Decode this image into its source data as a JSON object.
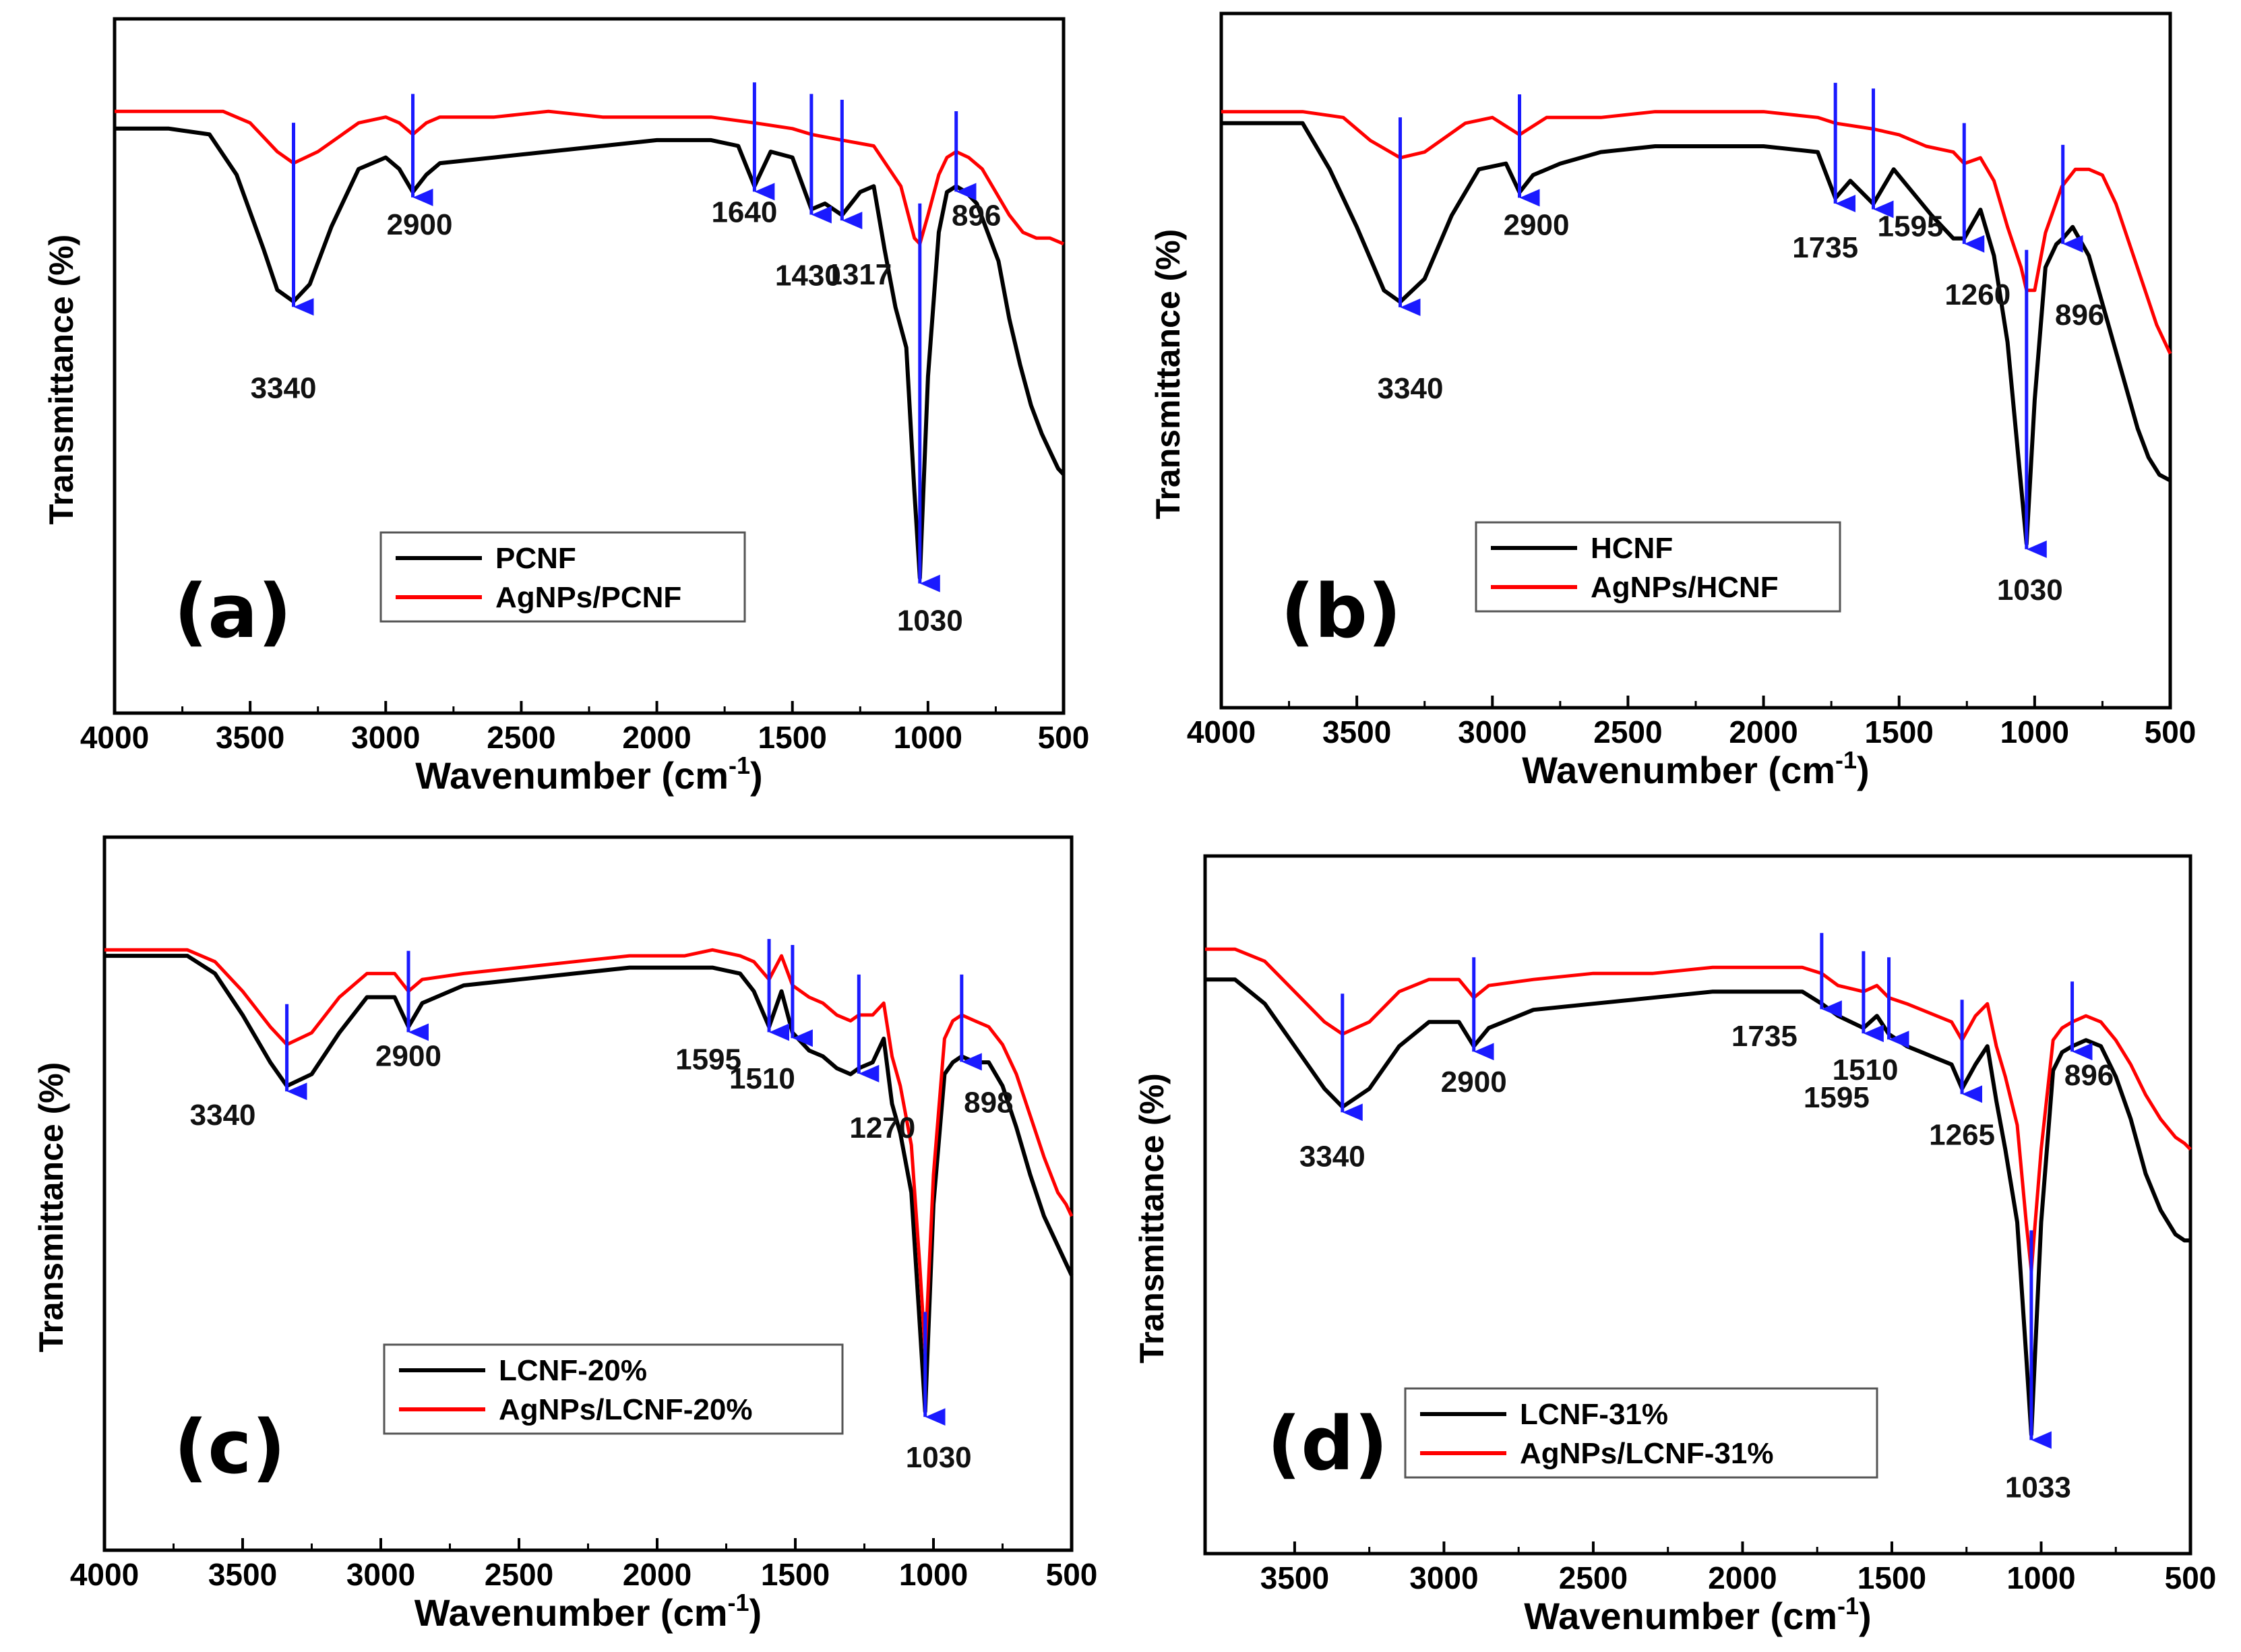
{
  "chart_data": [
    {
      "type": "line",
      "panel_label": "(a)",
      "xlabel": "Wavenumber (cm-1)",
      "xlabel_base": "Wavenumber (cm",
      "xlabel_sup": "-1",
      "xlabel_end": ")",
      "ylabel": "Transmittance (%)",
      "xlim": [
        4000,
        500
      ],
      "xticks": [
        "4000",
        "3500",
        "3000",
        "2500",
        "2000",
        "1500",
        "1000",
        "500"
      ],
      "ylim": [
        0,
        100
      ],
      "legend_position": "bottom-center",
      "series": [
        {
          "name": "PCNF",
          "color": "#000000",
          "x": [
            4000,
            3800,
            3650,
            3550,
            3450,
            3400,
            3340,
            3280,
            3200,
            3100,
            3000,
            2950,
            2900,
            2850,
            2800,
            2600,
            2400,
            2200,
            2000,
            1800,
            1700,
            1640,
            1580,
            1500,
            1430,
            1380,
            1317,
            1250,
            1200,
            1160,
            1120,
            1080,
            1050,
            1030,
            1000,
            960,
            930,
            896,
            860,
            820,
            780,
            740,
            700,
            660,
            620,
            580,
            540,
            520,
            500
          ],
          "y": [
            93,
            93,
            92,
            85,
            72,
            65,
            63,
            66,
            76,
            86,
            88,
            86,
            82,
            85,
            87,
            88,
            89,
            90,
            91,
            91,
            90,
            83,
            89,
            88,
            79,
            80,
            78,
            82,
            83,
            72,
            62,
            55,
            30,
            15,
            50,
            75,
            82,
            83,
            82,
            80,
            75,
            70,
            60,
            52,
            45,
            40,
            36,
            34,
            33
          ]
        },
        {
          "name": "AgNPs/PCNF",
          "color": "#ff0000",
          "x": [
            4000,
            3800,
            3600,
            3500,
            3400,
            3340,
            3250,
            3100,
            3000,
            2950,
            2900,
            2850,
            2800,
            2600,
            2400,
            2200,
            2000,
            1800,
            1640,
            1500,
            1430,
            1317,
            1200,
            1100,
            1050,
            1030,
            1000,
            960,
            930,
            896,
            850,
            800,
            750,
            700,
            650,
            600,
            550,
            500
          ],
          "y": [
            96,
            96,
            96,
            94,
            89,
            87,
            89,
            94,
            95,
            94,
            92,
            94,
            95,
            95,
            96,
            95,
            95,
            95,
            94,
            93,
            92,
            91,
            90,
            83,
            74,
            73,
            78,
            85,
            88,
            89,
            88,
            86,
            82,
            78,
            75,
            74,
            74,
            73
          ]
        }
      ],
      "annotations": [
        {
          "label": "3340",
          "x": 3340
        },
        {
          "label": "2900",
          "x": 2900
        },
        {
          "label": "1640",
          "x": 1640
        },
        {
          "label": "1430",
          "x": 1430
        },
        {
          "label": "1317",
          "x": 1317
        },
        {
          "label": "1030",
          "x": 1030
        },
        {
          "label": "896",
          "x": 896
        }
      ]
    },
    {
      "type": "line",
      "panel_label": "(b)",
      "xlabel": "Wavenumber (cm-1)",
      "xlabel_base": "Wavenumber (cm",
      "xlabel_sup": "-1",
      "xlabel_end": ")",
      "ylabel": "Transmittance (%)",
      "xlim": [
        4000,
        500
      ],
      "xticks": [
        "4000",
        "3500",
        "3000",
        "2500",
        "2000",
        "1500",
        "1000",
        "500"
      ],
      "ylim": [
        0,
        100
      ],
      "legend_position": "bottom-center",
      "series": [
        {
          "name": "HCNF",
          "color": "#000000",
          "x": [
            4000,
            3800,
            3700,
            3600,
            3500,
            3400,
            3340,
            3250,
            3150,
            3050,
            2950,
            2900,
            2850,
            2750,
            2600,
            2400,
            2200,
            2000,
            1800,
            1735,
            1680,
            1595,
            1520,
            1450,
            1380,
            1300,
            1260,
            1200,
            1150,
            1100,
            1060,
            1030,
            1000,
            960,
            920,
            896,
            860,
            800,
            740,
            680,
            620,
            580,
            540,
            500
          ],
          "y": [
            93,
            93,
            93,
            85,
            75,
            64,
            62,
            66,
            77,
            85,
            86,
            81,
            84,
            86,
            88,
            89,
            89,
            89,
            88,
            80,
            83,
            79,
            85,
            81,
            77,
            73,
            73,
            78,
            70,
            55,
            35,
            20,
            45,
            68,
            72,
            73,
            75,
            70,
            60,
            50,
            40,
            35,
            32,
            31
          ]
        },
        {
          "name": "AgNPs/HCNF",
          "color": "#ff0000",
          "x": [
            4000,
            3700,
            3550,
            3450,
            3340,
            3250,
            3100,
            3000,
            2900,
            2800,
            2600,
            2400,
            2200,
            2000,
            1800,
            1735,
            1595,
            1500,
            1400,
            1300,
            1260,
            1200,
            1150,
            1100,
            1050,
            1030,
            1000,
            960,
            900,
            850,
            800,
            750,
            700,
            650,
            600,
            550,
            500
          ],
          "y": [
            95,
            95,
            94,
            90,
            87,
            88,
            93,
            94,
            91,
            94,
            94,
            95,
            95,
            95,
            94,
            93,
            92,
            91,
            89,
            88,
            86,
            87,
            83,
            75,
            68,
            64,
            64,
            74,
            82,
            85,
            85,
            84,
            79,
            72,
            65,
            58,
            53
          ]
        }
      ],
      "annotations": [
        {
          "label": "3340",
          "x": 3340
        },
        {
          "label": "2900",
          "x": 2900
        },
        {
          "label": "1735",
          "x": 1735
        },
        {
          "label": "1595",
          "x": 1595
        },
        {
          "label": "1260",
          "x": 1260
        },
        {
          "label": "1030",
          "x": 1030
        },
        {
          "label": "896",
          "x": 896
        }
      ]
    },
    {
      "type": "line",
      "panel_label": "(c)",
      "xlabel": "Wavenumber (cm-1)",
      "xlabel_base": "Wavenumber (cm",
      "xlabel_sup": "-1",
      "xlabel_end": ")",
      "ylabel": "Transmittance (%)",
      "xlim": [
        4000,
        500
      ],
      "xticks": [
        "4000",
        "3500",
        "3000",
        "2500",
        "2000",
        "1500",
        "1000",
        "500"
      ],
      "ylim": [
        0,
        100
      ],
      "legend_position": "bottom-center",
      "series": [
        {
          "name": "LCNF-20%",
          "color": "#000000",
          "x": [
            4000,
            3800,
            3700,
            3600,
            3500,
            3400,
            3340,
            3250,
            3150,
            3050,
            2950,
            2900,
            2850,
            2700,
            2500,
            2300,
            2100,
            1900,
            1800,
            1700,
            1650,
            1595,
            1550,
            1510,
            1450,
            1400,
            1350,
            1300,
            1270,
            1220,
            1180,
            1150,
            1120,
            1080,
            1050,
            1030,
            1000,
            960,
            930,
            898,
            850,
            800,
            750,
            700,
            650,
            600,
            550,
            520,
            500
          ],
          "y": [
            92,
            92,
            92,
            89,
            82,
            74,
            70,
            72,
            79,
            85,
            85,
            80,
            84,
            87,
            88,
            89,
            90,
            90,
            90,
            89,
            86,
            80,
            86,
            79,
            76,
            75,
            73,
            72,
            73,
            74,
            78,
            67,
            62,
            52,
            30,
            15,
            50,
            72,
            74,
            75,
            74,
            74,
            70,
            63,
            55,
            48,
            43,
            40,
            38
          ]
        },
        {
          "name": "AgNPs/LCNF-20%",
          "color": "#ff0000",
          "x": [
            4000,
            3800,
            3700,
            3600,
            3500,
            3400,
            3340,
            3250,
            3150,
            3050,
            2950,
            2900,
            2850,
            2700,
            2500,
            2300,
            2100,
            1900,
            1800,
            1700,
            1650,
            1595,
            1550,
            1510,
            1450,
            1400,
            1350,
            1300,
            1270,
            1220,
            1180,
            1150,
            1120,
            1080,
            1050,
            1030,
            1000,
            960,
            930,
            898,
            850,
            800,
            750,
            700,
            650,
            600,
            550,
            520,
            500
          ],
          "y": [
            93,
            93,
            93,
            91,
            86,
            80,
            77,
            79,
            85,
            89,
            89,
            86,
            88,
            89,
            90,
            91,
            92,
            92,
            93,
            92,
            91,
            88,
            92,
            87,
            85,
            84,
            82,
            81,
            82,
            82,
            84,
            75,
            70,
            60,
            40,
            25,
            55,
            78,
            81,
            82,
            81,
            80,
            77,
            72,
            65,
            58,
            52,
            50,
            48
          ]
        }
      ],
      "annotations": [
        {
          "label": "3340",
          "x": 3340
        },
        {
          "label": "2900",
          "x": 2900
        },
        {
          "label": "1595",
          "x": 1595
        },
        {
          "label": "1510",
          "x": 1510
        },
        {
          "label": "1270",
          "x": 1270
        },
        {
          "label": "1030",
          "x": 1030
        },
        {
          "label": "898",
          "x": 898
        }
      ]
    },
    {
      "type": "line",
      "panel_label": "(d)",
      "xlabel": "Wavenumber (cm-1)",
      "xlabel_base": "Wavenumber (cm",
      "xlabel_sup": "-1",
      "xlabel_end": ")",
      "ylabel": "Transmittance (%)",
      "xlim": [
        3800,
        500
      ],
      "xticks": [
        "3500",
        "3000",
        "2500",
        "2000",
        "1500",
        "1000",
        "500"
      ],
      "ylim": [
        0,
        100
      ],
      "legend_position": "bottom-center",
      "series": [
        {
          "name": "LCNF-31%",
          "color": "#000000",
          "x": [
            3800,
            3700,
            3600,
            3500,
            3400,
            3340,
            3250,
            3150,
            3050,
            2950,
            2900,
            2850,
            2700,
            2500,
            2300,
            2100,
            1900,
            1800,
            1735,
            1680,
            1595,
            1550,
            1510,
            1450,
            1400,
            1350,
            1300,
            1265,
            1220,
            1180,
            1150,
            1120,
            1080,
            1050,
            1033,
            1000,
            960,
            930,
            896,
            850,
            800,
            750,
            700,
            650,
            600,
            550,
            520,
            500
          ],
          "y": [
            90,
            90,
            86,
            79,
            72,
            69,
            72,
            79,
            83,
            83,
            79,
            82,
            85,
            86,
            87,
            88,
            88,
            88,
            86,
            84,
            82,
            84,
            81,
            79,
            78,
            77,
            76,
            72,
            76,
            79,
            70,
            62,
            50,
            28,
            15,
            50,
            75,
            78,
            79,
            80,
            79,
            74,
            67,
            58,
            52,
            48,
            47,
            47
          ]
        },
        {
          "name": "AgNPs/LCNF-31%",
          "color": "#ff0000",
          "x": [
            3800,
            3700,
            3600,
            3500,
            3400,
            3340,
            3250,
            3150,
            3050,
            2950,
            2900,
            2850,
            2700,
            2500,
            2300,
            2100,
            1900,
            1800,
            1735,
            1680,
            1595,
            1550,
            1510,
            1450,
            1400,
            1350,
            1300,
            1265,
            1220,
            1180,
            1150,
            1120,
            1080,
            1050,
            1033,
            1000,
            960,
            930,
            896,
            850,
            800,
            750,
            700,
            650,
            600,
            550,
            520,
            500
          ],
          "y": [
            95,
            95,
            93,
            88,
            83,
            81,
            83,
            88,
            90,
            90,
            87,
            89,
            90,
            91,
            91,
            92,
            92,
            92,
            91,
            89,
            88,
            89,
            87,
            86,
            85,
            84,
            83,
            80,
            84,
            86,
            79,
            74,
            66,
            50,
            42,
            62,
            80,
            82,
            83,
            84,
            83,
            80,
            76,
            71,
            67,
            64,
            63,
            62
          ]
        }
      ],
      "annotations": [
        {
          "label": "3340",
          "x": 3340
        },
        {
          "label": "2900",
          "x": 2900
        },
        {
          "label": "1735",
          "x": 1735
        },
        {
          "label": "1595",
          "x": 1595
        },
        {
          "label": "1510",
          "x": 1510
        },
        {
          "label": "1265",
          "x": 1265
        },
        {
          "label": "1033",
          "x": 1033
        },
        {
          "label": "896",
          "x": 896
        }
      ]
    }
  ],
  "colors": {
    "arrow": "#1a1aff",
    "axis": "#000000"
  }
}
